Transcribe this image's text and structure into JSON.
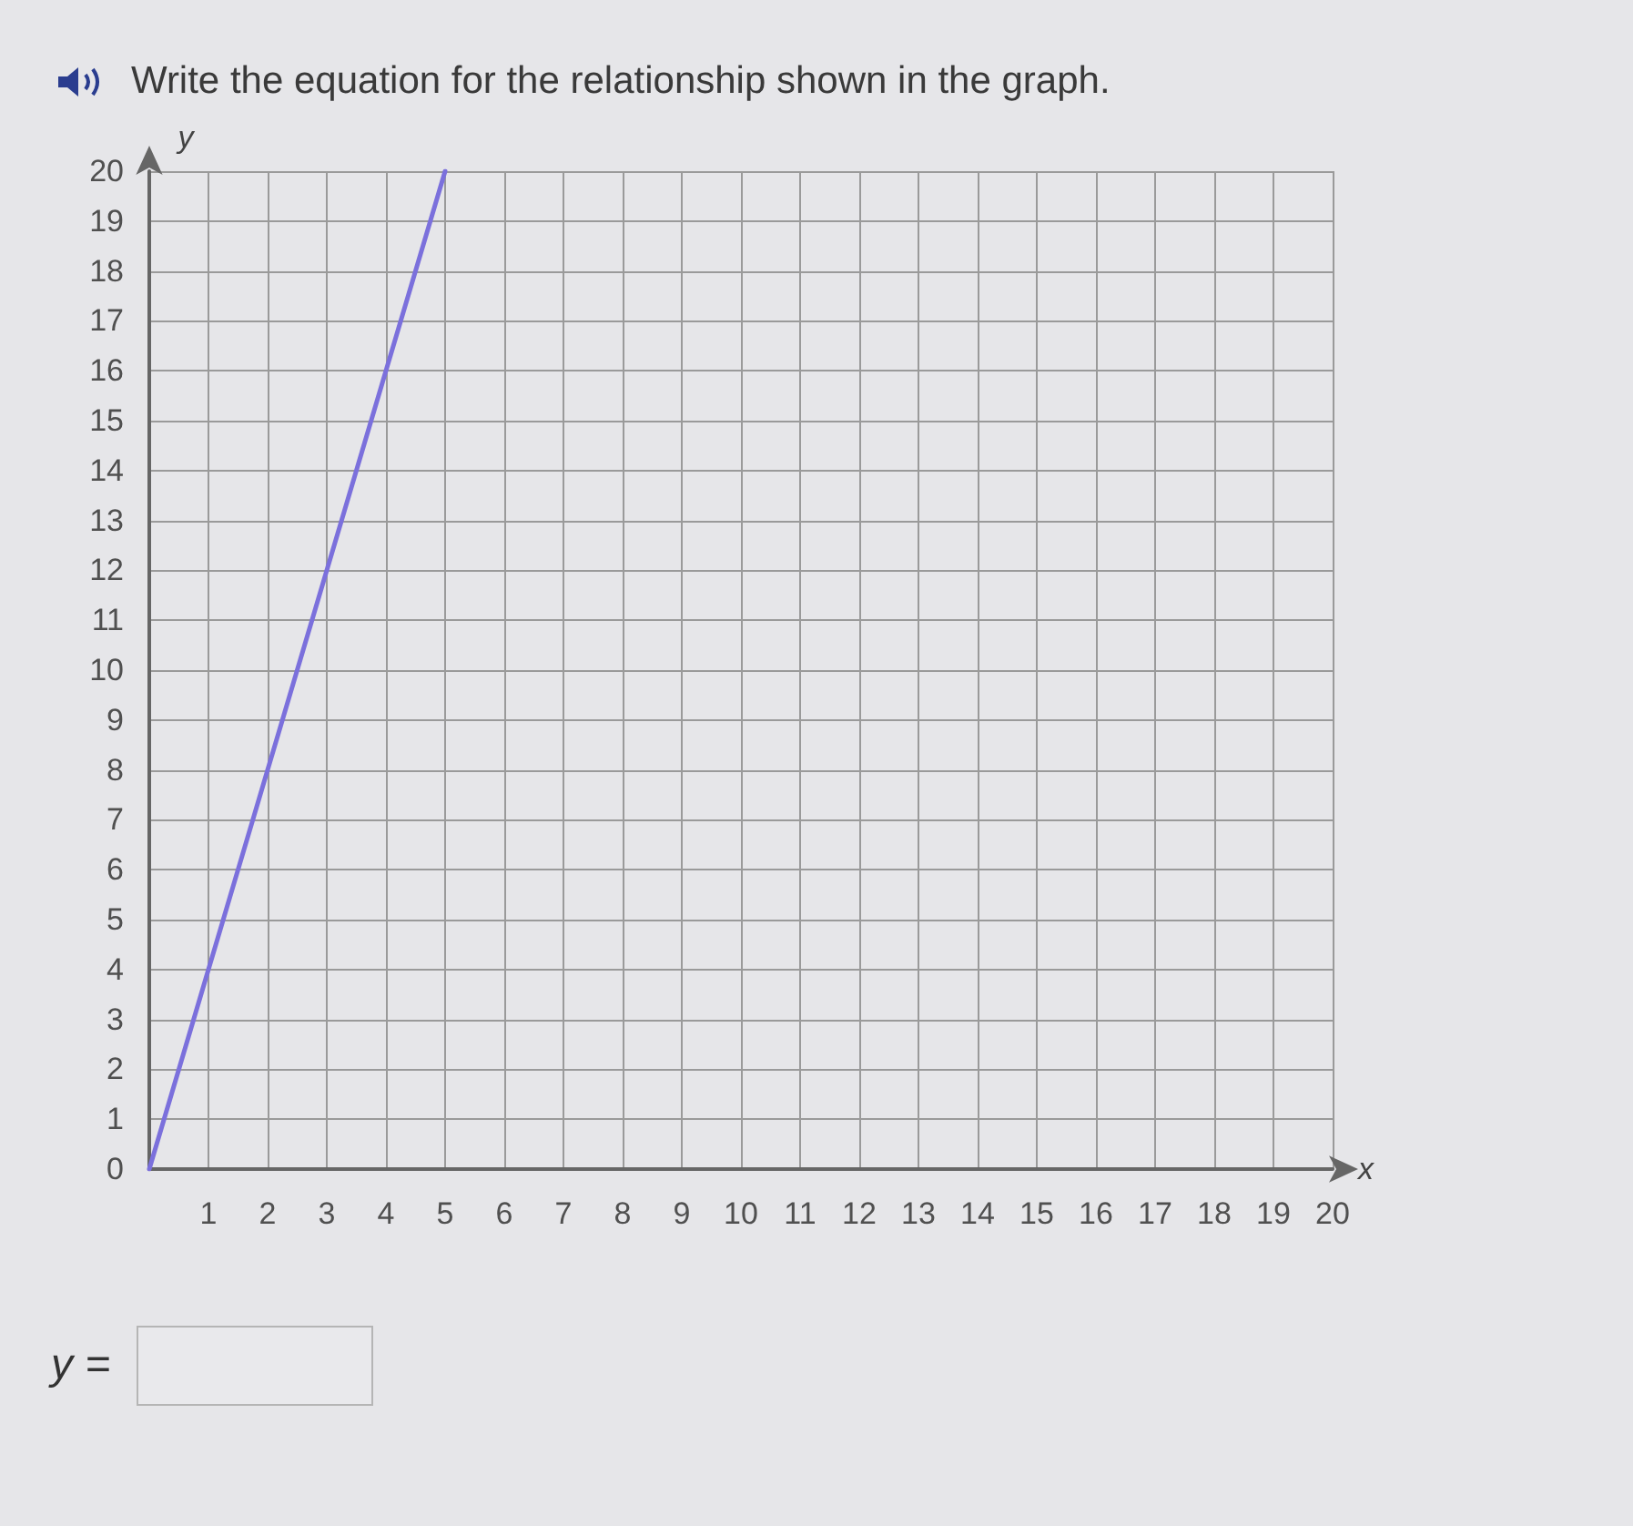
{
  "chart_data": {
    "type": "line",
    "title": "Write the equation for the relationship shown in the graph.",
    "xlabel": "x",
    "ylabel": "y",
    "x": [
      0,
      5
    ],
    "values": [
      0,
      20
    ],
    "color": "#7b70dc",
    "xlim": [
      0,
      20
    ],
    "xticks": [
      {
        "value": 0,
        "label": null
      },
      1,
      2,
      3,
      4,
      5,
      6,
      7,
      8,
      9,
      10,
      11,
      12,
      13,
      14,
      15,
      16,
      17,
      18,
      19,
      20
    ],
    "ylim": [
      0,
      20
    ],
    "yticks": [
      0,
      1,
      2,
      3,
      4,
      5,
      6,
      7,
      8,
      9,
      10,
      11,
      12,
      13,
      14,
      15,
      16,
      17,
      18,
      19,
      20
    ],
    "grid": true,
    "marker": "none",
    "annotations": [
      "y ="
    ]
  }
}
